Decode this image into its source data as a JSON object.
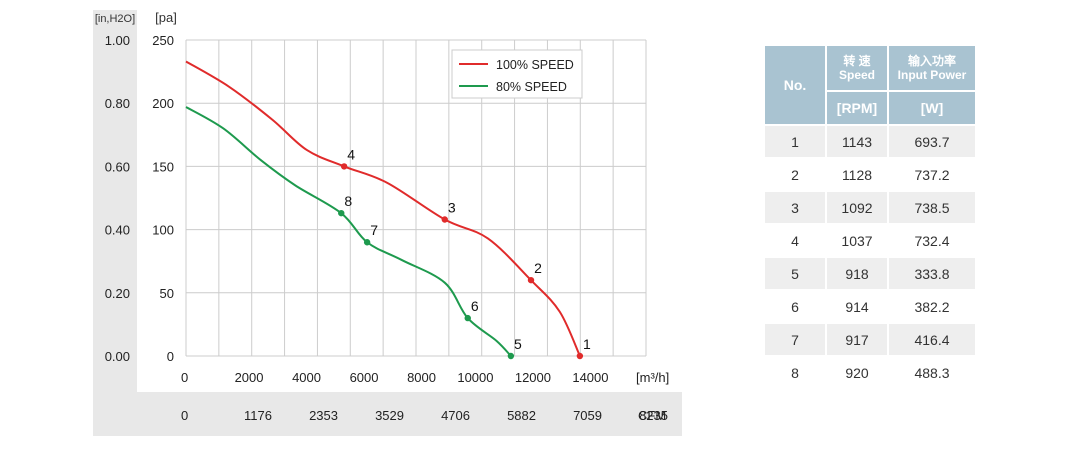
{
  "chart_data": {
    "type": "line",
    "y_left_unit": "[in,H2O]",
    "y_left_ticks": [
      "1.00",
      "0.80",
      "0.60",
      "0.40",
      "0.20",
      "0.00"
    ],
    "y_right_unit": "[pa]",
    "ylim": [
      0,
      250
    ],
    "y_ticks": [
      "250",
      "200",
      "150",
      "100",
      "50",
      "0"
    ],
    "xlim": [
      0,
      16000
    ],
    "x_ticks": [
      "0",
      "2000",
      "4000",
      "6000",
      "8000",
      "10000",
      "12000",
      "14000"
    ],
    "x_unit": "[m³/h]",
    "cfm_ticks": [
      "0",
      "1176",
      "2353",
      "3529",
      "4706",
      "5882",
      "7059",
      "8235"
    ],
    "cfm_unit": "CFM",
    "legend_position": "top-right",
    "series": [
      {
        "name": "100% SPEED",
        "color": "#e02b2b",
        "x": [
          0,
          1500,
          3000,
          4200,
          5500,
          7000,
          9000,
          10500,
          12000,
          13000,
          13700
        ],
        "y": [
          233,
          213,
          187,
          163,
          150,
          137,
          108,
          93,
          60,
          35,
          0
        ],
        "points": [
          {
            "label": "4",
            "x": 5500,
            "y": 150
          },
          {
            "label": "3",
            "x": 9000,
            "y": 108
          },
          {
            "label": "2",
            "x": 12000,
            "y": 60
          },
          {
            "label": "1",
            "x": 13700,
            "y": 0
          }
        ]
      },
      {
        "name": "80% SPEED",
        "color": "#1e9a4e",
        "x": [
          0,
          1300,
          2600,
          3800,
          5400,
          6300,
          7500,
          9000,
          9800,
          10800,
          11300
        ],
        "y": [
          197,
          180,
          155,
          135,
          113,
          90,
          76,
          58,
          30,
          12,
          0
        ],
        "points": [
          {
            "label": "8",
            "x": 5400,
            "y": 113
          },
          {
            "label": "7",
            "x": 6300,
            "y": 90
          },
          {
            "label": "6",
            "x": 9800,
            "y": 30
          },
          {
            "label": "5",
            "x": 11300,
            "y": 0
          }
        ]
      }
    ]
  },
  "table": {
    "header_no": "No.",
    "header_speed_cn": "转 速",
    "header_speed_en": "Speed",
    "header_power_cn": "输入功率",
    "header_power_en": "Input Power",
    "unit_speed": "[RPM]",
    "unit_power": "[W]",
    "rows": [
      {
        "no": "1",
        "rpm": "1143",
        "power": "693.7"
      },
      {
        "no": "2",
        "rpm": "1128",
        "power": "737.2"
      },
      {
        "no": "3",
        "rpm": "1092",
        "power": "738.5"
      },
      {
        "no": "4",
        "rpm": "1037",
        "power": "732.4"
      },
      {
        "no": "5",
        "rpm": "918",
        "power": "333.8"
      },
      {
        "no": "6",
        "rpm": "914",
        "power": "382.2"
      },
      {
        "no": "7",
        "rpm": "917",
        "power": "416.4"
      },
      {
        "no": "8",
        "rpm": "920",
        "power": "488.3"
      }
    ]
  },
  "colors": {
    "side_panel": "#e8e8e8",
    "grid": "#cccccc",
    "table_header": "#a9c3d1"
  }
}
